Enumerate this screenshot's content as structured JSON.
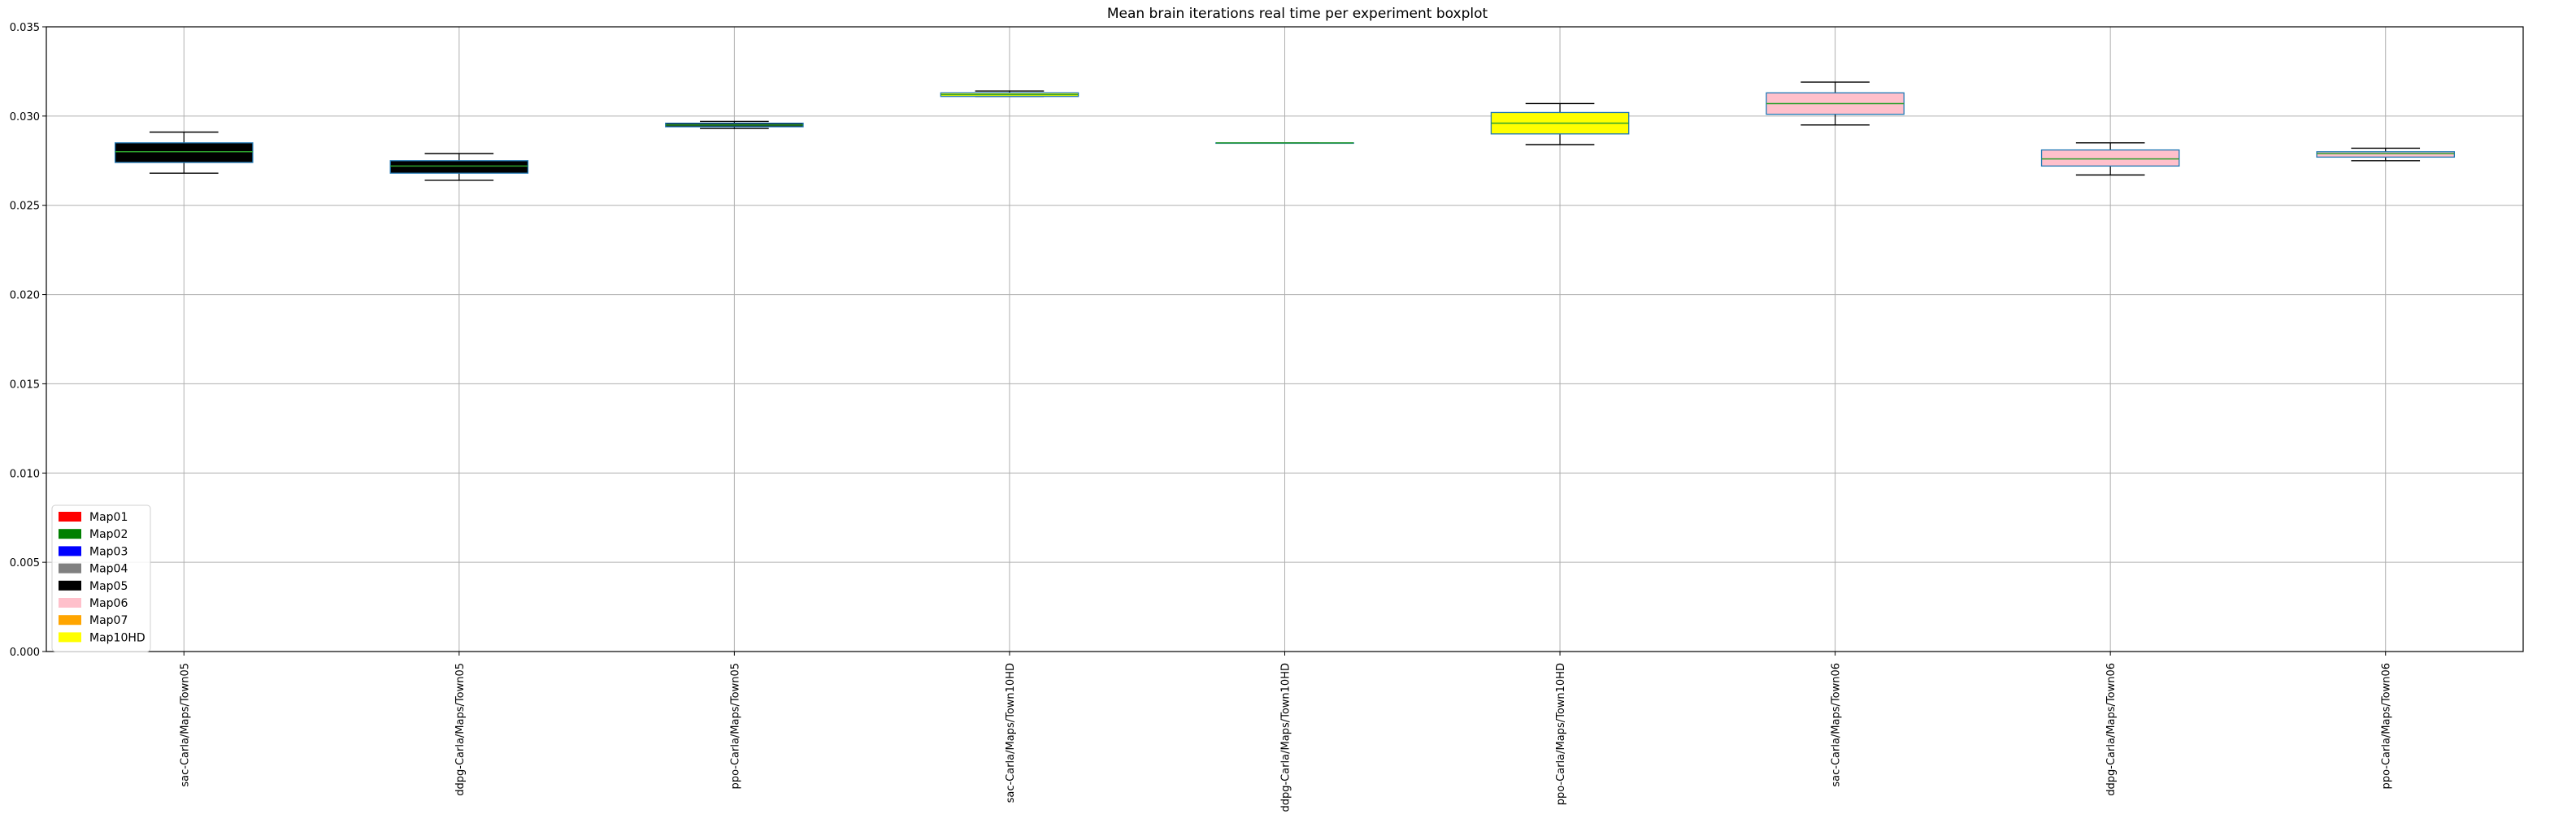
{
  "chart_data": {
    "type": "boxplot",
    "title": "Mean brain iterations real time per experiment boxplot",
    "xlabel": "",
    "ylabel": "",
    "ylim": [
      0,
      0.035
    ],
    "yticks": [
      "0.000",
      "0.005",
      "0.010",
      "0.015",
      "0.020",
      "0.025",
      "0.030",
      "0.035"
    ],
    "grid": true,
    "legend_position": "lower-left",
    "categories": [
      "sac-Carla/Maps/Town05",
      "ddpg-Carla/Maps/Town05",
      "ppo-Carla/Maps/Town05",
      "sac-Carla/Maps/Town10HD",
      "ddpg-Carla/Maps/Town10HD",
      "ppo-Carla/Maps/Town10HD",
      "sac-Carla/Maps/Town06",
      "ddpg-Carla/Maps/Town06",
      "ppo-Carla/Maps/Town06"
    ],
    "boxes": [
      {
        "min": 0.0268,
        "q1": 0.0274,
        "median": 0.028,
        "q3": 0.0285,
        "max": 0.0291,
        "fill": "#000000"
      },
      {
        "min": 0.0264,
        "q1": 0.0268,
        "median": 0.0272,
        "q3": 0.0275,
        "max": 0.0279,
        "fill": "#000000"
      },
      {
        "min": 0.0293,
        "q1": 0.0294,
        "median": 0.0295,
        "q3": 0.0296,
        "max": 0.0297,
        "fill": "#000000"
      },
      {
        "min": 0.0311,
        "q1": 0.0311,
        "median": 0.0312,
        "q3": 0.0313,
        "max": 0.0314,
        "fill": "#ffff00"
      },
      {
        "min": 0.0285,
        "q1": 0.0285,
        "median": 0.0285,
        "q3": 0.0285,
        "max": 0.0285,
        "fill": "#ffff00"
      },
      {
        "min": 0.0284,
        "q1": 0.029,
        "median": 0.0296,
        "q3": 0.0302,
        "max": 0.0307,
        "fill": "#ffff00"
      },
      {
        "min": 0.0295,
        "q1": 0.0301,
        "median": 0.0307,
        "q3": 0.0313,
        "max": 0.0319,
        "fill": "#ffc0cb"
      },
      {
        "min": 0.0267,
        "q1": 0.0272,
        "median": 0.0276,
        "q3": 0.0281,
        "max": 0.0285,
        "fill": "#ffc0cb"
      },
      {
        "min": 0.0275,
        "q1": 0.0277,
        "median": 0.0279,
        "q3": 0.028,
        "max": 0.0282,
        "fill": "#ffc0cb"
      }
    ],
    "colors": {
      "box_edge": "#1f77b4",
      "median": "#2ca02c",
      "whisker": "#000000",
      "grid": "#b0b0b0"
    },
    "legend": [
      {
        "label": "Map01",
        "color": "#ff0000"
      },
      {
        "label": "Map02",
        "color": "#008000"
      },
      {
        "label": "Map03",
        "color": "#0000ff"
      },
      {
        "label": "Map04",
        "color": "#808080"
      },
      {
        "label": "Map05",
        "color": "#000000"
      },
      {
        "label": "Map06",
        "color": "#ffc0cb"
      },
      {
        "label": "Map07",
        "color": "#ffa500"
      },
      {
        "label": "Map10HD",
        "color": "#ffff00"
      }
    ]
  }
}
